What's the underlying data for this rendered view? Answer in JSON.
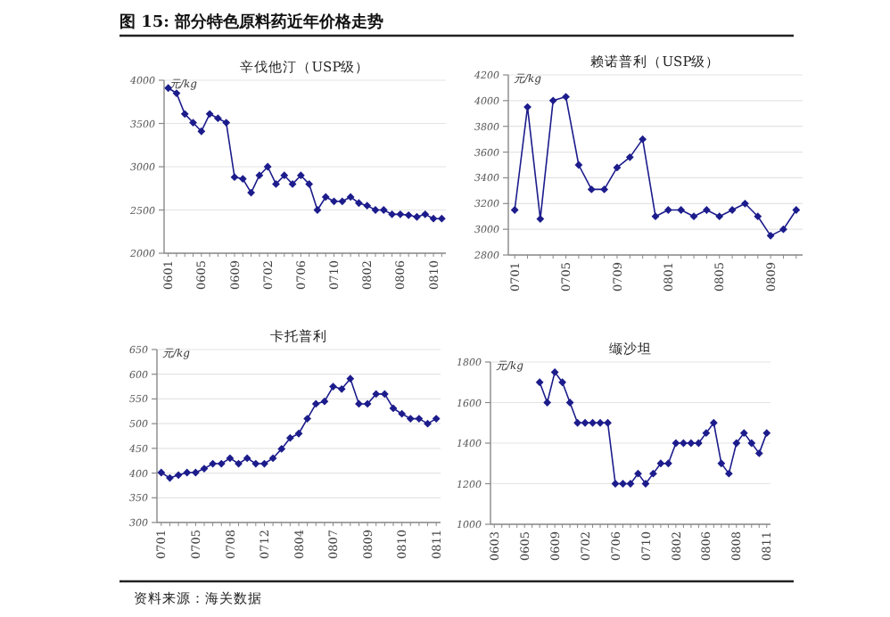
{
  "chart_data": [
    {
      "type": "line",
      "title": "辛伐他汀（USP级）",
      "ylabel": "元/kg",
      "annotations": [
        "图 15: 部分特色原料药近年价格走势"
      ],
      "categories": [
        "0601",
        null,
        null,
        null,
        "0605",
        null,
        null,
        null,
        "0609",
        null,
        null,
        null,
        "0702",
        null,
        null,
        null,
        "0706",
        null,
        null,
        null,
        "0710",
        null,
        null,
        null,
        "0802",
        null,
        null,
        null,
        "0806",
        null,
        null,
        null,
        "0810",
        null
      ],
      "series": [
        {
          "color": "#1c1c8c",
          "values": [
            3910,
            3850,
            3610,
            3510,
            3410,
            3610,
            3560,
            3510,
            2880,
            2860,
            2700,
            2900,
            3000,
            2800,
            2900,
            2800,
            2900,
            2800,
            2500,
            2650,
            2600,
            2600,
            2650,
            2580,
            2550,
            2500,
            2500,
            2450,
            2450,
            2440,
            2420,
            2450,
            2400,
            2400
          ]
        }
      ],
      "ylim": [
        2000,
        4000
      ],
      "yticks": [
        2000,
        2500,
        3000,
        3500,
        4000
      ],
      "grid": "y",
      "marker": "diamond",
      "line_style": "solid"
    },
    {
      "type": "line",
      "title": "赖诺普利（USP级）",
      "ylabel": "元/kg",
      "categories": [
        "0701",
        null,
        null,
        null,
        "0705",
        null,
        null,
        null,
        "0709",
        null,
        null,
        null,
        "0801",
        null,
        null,
        null,
        "0805",
        null,
        null,
        null,
        "0809",
        null,
        null
      ],
      "series": [
        {
          "color": "#1c1c8c",
          "values": [
            3150,
            3950,
            3080,
            4000,
            4030,
            3500,
            3310,
            3310,
            3480,
            3560,
            3700,
            3100,
            3150,
            3150,
            3100,
            3150,
            3100,
            3150,
            3200,
            3100,
            2950,
            3000,
            3150
          ]
        }
      ],
      "ylim": [
        2800,
        4200
      ],
      "yticks": [
        2800,
        3000,
        3200,
        3400,
        3600,
        3800,
        4000,
        4200
      ],
      "grid": "y",
      "marker": "diamond",
      "line_style": "solid"
    },
    {
      "type": "line",
      "title": "卡托普利",
      "ylabel": "元/kg",
      "categories": [
        "0701",
        null,
        null,
        null,
        "0705",
        null,
        null,
        null,
        "0708",
        null,
        null,
        null,
        "0712",
        null,
        null,
        null,
        "0804",
        null,
        null,
        null,
        "0807",
        null,
        null,
        null,
        "0809",
        null,
        null,
        null,
        "0810",
        null,
        null,
        null,
        "0811"
      ],
      "series": [
        {
          "color": "#1c1c8c",
          "values": [
            401,
            390,
            396,
            401,
            401,
            409,
            419,
            419,
            430,
            419,
            430,
            419,
            419,
            430,
            449,
            471,
            480,
            510,
            540,
            545,
            575,
            570,
            591,
            540,
            540,
            560,
            560,
            531,
            520,
            510,
            510,
            500,
            510
          ]
        }
      ],
      "ylim": [
        300,
        650
      ],
      "yticks": [
        300,
        350,
        400,
        450,
        500,
        550,
        600,
        650
      ],
      "grid": "y",
      "marker": "diamond",
      "line_style": "solid"
    },
    {
      "type": "line",
      "title": "缬沙坦",
      "ylabel": "元/kg",
      "annotations": [
        "资料来源：海关数据"
      ],
      "categories": [
        "0603",
        null,
        null,
        null,
        "0605",
        null,
        null,
        null,
        "0609",
        null,
        null,
        null,
        "0702",
        null,
        null,
        null,
        "0706",
        null,
        null,
        null,
        "0710",
        null,
        null,
        null,
        "0802",
        null,
        null,
        null,
        "0806",
        null,
        null,
        null,
        "0808",
        null,
        null,
        null,
        "0811"
      ],
      "series": [
        {
          "color": "#1c1c8c",
          "values": [
            null,
            null,
            null,
            null,
            null,
            null,
            1700,
            1600,
            1750,
            1700,
            1600,
            1500,
            1500,
            1500,
            1500,
            1500,
            1200,
            1200,
            1200,
            1250,
            1200,
            1250,
            1300,
            1300,
            1400,
            1400,
            1400,
            1400,
            1450,
            1500,
            1300,
            1250,
            1400,
            1450,
            1400,
            1350,
            1450
          ]
        }
      ],
      "ylim": [
        1000,
        1800
      ],
      "yticks": [
        1000,
        1200,
        1400,
        1600,
        1800
      ],
      "grid": "y",
      "marker": "diamond",
      "line_style": "solid"
    }
  ]
}
